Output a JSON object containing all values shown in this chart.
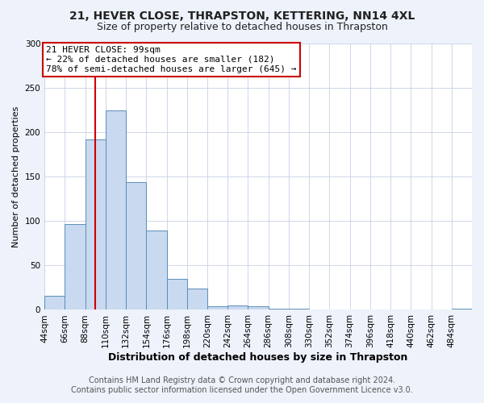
{
  "title": "21, HEVER CLOSE, THRAPSTON, KETTERING, NN14 4XL",
  "subtitle": "Size of property relative to detached houses in Thrapston",
  "xlabel": "Distribution of detached houses by size in Thrapston",
  "ylabel": "Number of detached properties",
  "bin_edges": [
    44,
    66,
    88,
    110,
    132,
    154,
    176,
    198,
    220,
    242,
    264,
    286,
    308,
    330,
    352,
    374,
    396,
    418,
    440,
    462,
    484,
    506
  ],
  "bar_heights": [
    16,
    97,
    192,
    225,
    144,
    89,
    35,
    24,
    4,
    5,
    4,
    1,
    1,
    0,
    0,
    0,
    0,
    0,
    0,
    0,
    1
  ],
  "bar_color": "#c9d9f0",
  "bar_edge_color": "#5b8db8",
  "property_line_x": 99,
  "property_line_color": "#cc0000",
  "annotation_text": "21 HEVER CLOSE: 99sqm\n← 22% of detached houses are smaller (182)\n78% of semi-detached houses are larger (645) →",
  "annotation_box_edge_color": "#cc0000",
  "ylim": [
    0,
    300
  ],
  "yticks": [
    0,
    50,
    100,
    150,
    200,
    250,
    300
  ],
  "footer_line1": "Contains HM Land Registry data © Crown copyright and database right 2024.",
  "footer_line2": "Contains public sector information licensed under the Open Government Licence v3.0.",
  "background_color": "#eef2fb",
  "plot_background_color": "#ffffff",
  "grid_color": "#c8d0e8",
  "title_fontsize": 10,
  "subtitle_fontsize": 9,
  "xlabel_fontsize": 9,
  "ylabel_fontsize": 8,
  "tick_fontsize": 7.5,
  "annotation_fontsize": 8,
  "footer_fontsize": 7
}
